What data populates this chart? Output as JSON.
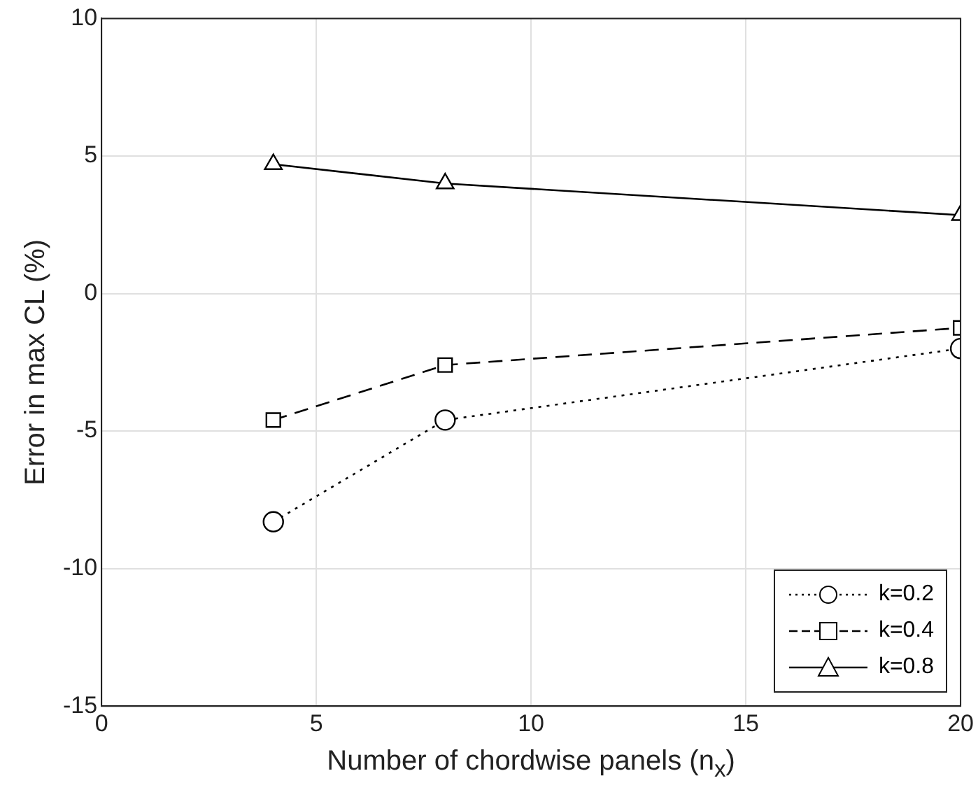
{
  "chart_data": {
    "type": "line",
    "xlabel": "Number of chordwise panels (n$_{x}$)",
    "ylabel": "Error in max CL (%)",
    "x": [
      4,
      8,
      20
    ],
    "series": [
      {
        "name": "k=0.2",
        "color": "#000000",
        "values": [
          -8.3,
          -4.6,
          -2.0
        ],
        "marker": "circle",
        "line_style": "dotted"
      },
      {
        "name": "k=0.4",
        "color": "#000000",
        "values": [
          -4.6,
          -2.6,
          -1.25
        ],
        "marker": "square",
        "line_style": "dashed"
      },
      {
        "name": "k=0.8",
        "color": "#000000",
        "values": [
          4.7,
          4.0,
          2.85
        ],
        "marker": "triangle",
        "line_style": "solid"
      }
    ],
    "xlim": [
      0,
      20
    ],
    "xticks": [
      0,
      5,
      10,
      15,
      20
    ],
    "ylim": [
      -15,
      10
    ],
    "yticks": [
      -15,
      -10,
      -5,
      0,
      5,
      10
    ],
    "grid": true,
    "legend": "bottom right"
  }
}
